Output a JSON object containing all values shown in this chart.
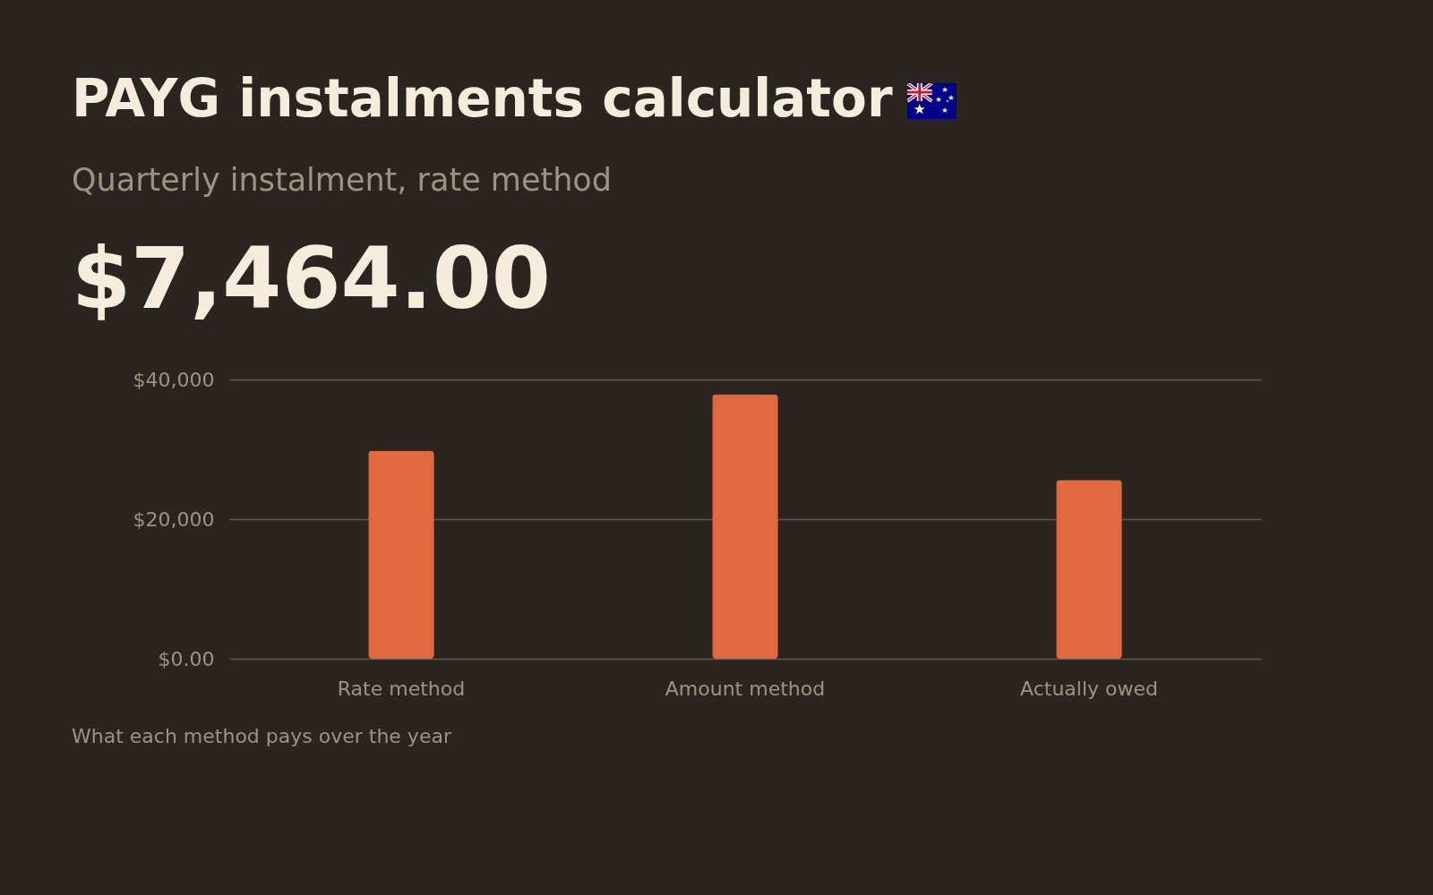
{
  "chart_data": {
    "type": "bar",
    "title": "PAYG instalments calculator",
    "subtitle": "Quarterly instalment, rate method",
    "annotations": [
      "$7,464.00",
      "What each method pays over the year"
    ],
    "categories": [
      "Rate method",
      "Amount method",
      "Actually owed"
    ],
    "values": [
      29800,
      37900,
      25600
    ],
    "color": "#e2693e",
    "ylim": [
      0,
      40000
    ],
    "yticks": [
      {
        "value": 0,
        "label": "$0.00"
      },
      {
        "value": 20000,
        "label": "$20,000"
      },
      {
        "value": 40000,
        "label": "$40,000"
      }
    ],
    "grid": "y"
  }
}
